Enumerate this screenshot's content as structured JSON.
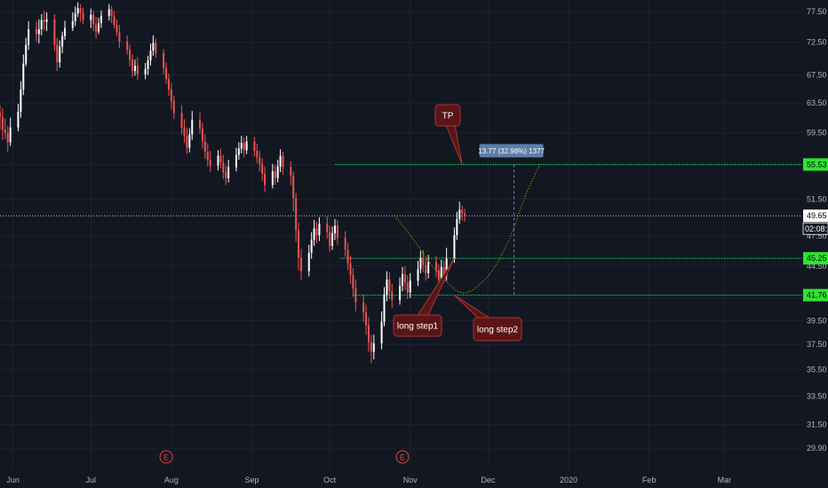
{
  "colors": {
    "background": "#131722",
    "grid": "#1e222d",
    "up": "#ffffff",
    "down": "#ef5350",
    "level_line": "#00c853",
    "level_tag": "#2ee52e",
    "path": "#c8b400",
    "callout_fill": "#5b1516",
    "callout_stroke": "#a63636",
    "measure_fill": "#5b7fa8"
  },
  "chart_data": {
    "type": "candlestick",
    "y_axis": {
      "ticks": [
        "77.50",
        "72.50",
        "67.50",
        "63.50",
        "59.50",
        "55.50",
        "51.50",
        "47.50",
        "44.50",
        "41.50",
        "39.50",
        "37.50",
        "35.50",
        "33.50",
        "31.50",
        "29.90"
      ],
      "tick_values": [
        77.5,
        72.5,
        67.5,
        63.5,
        59.5,
        55.5,
        51.5,
        47.5,
        44.5,
        41.5,
        39.5,
        37.5,
        35.5,
        33.5,
        31.5,
        29.9
      ],
      "scale": "log",
      "range": [
        28.5,
        79.5
      ]
    },
    "x_axis": {
      "ticks": [
        "Jun",
        "Jul",
        "Aug",
        "Sep",
        "Oct",
        "Nov",
        "Dec",
        "2020",
        "Feb",
        "Mar"
      ],
      "tick_dates": [
        "2019-06-01",
        "2019-07-01",
        "2019-08-01",
        "2019-09-01",
        "2019-10-01",
        "2019-11-01",
        "2019-12-01",
        "2020-01-01",
        "2020-02-01",
        "2020-03-01"
      ],
      "range": [
        "2019-05-27",
        "2020-03-31"
      ]
    },
    "current_price": {
      "value": 49.65,
      "label": "49.65",
      "countdown": "02:08:1"
    },
    "levels": [
      {
        "name": "TP",
        "value": 55.53,
        "label": "55.53",
        "from": "2019-10-03"
      },
      {
        "name": "long step1",
        "value": 45.25,
        "label": "45.25",
        "from": "2019-10-05"
      },
      {
        "name": "long step2",
        "value": 41.76,
        "label": "41.76",
        "from": "2019-10-10"
      }
    ],
    "projection_path": [
      [
        "2019-10-26",
        49.65
      ],
      [
        "2019-11-02",
        47.3
      ],
      [
        "2019-11-09",
        44.6
      ],
      [
        "2019-11-16",
        42.7
      ],
      [
        "2019-11-21",
        41.8
      ],
      [
        "2019-11-26",
        42.3
      ],
      [
        "2019-12-03",
        44.0
      ],
      [
        "2019-12-10",
        47.5
      ],
      [
        "2019-12-15",
        51.8
      ],
      [
        "2019-12-21",
        55.53
      ]
    ],
    "measure": {
      "label": "13.77 (32.98%) 1377",
      "date": "2019-12-11",
      "from": 41.76,
      "to": 55.53
    },
    "callouts": [
      {
        "text": "TP",
        "anchor": [
          "2019-11-21",
          55.53
        ]
      },
      {
        "text": "long step1",
        "anchor": [
          "2019-11-18",
          45.25
        ]
      },
      {
        "text": "long step2",
        "anchor": [
          "2019-11-18",
          41.76
        ]
      }
    ],
    "events": [
      {
        "label": "E",
        "date": "2019-07-30"
      },
      {
        "label": "E",
        "date": "2019-10-29"
      }
    ],
    "candles": [
      [
        62.2,
        61.6,
        63.2,
        59.9
      ],
      [
        61.6,
        59.9,
        62.8,
        58.6
      ],
      [
        59.9,
        59.5,
        61.4,
        58.7
      ],
      [
        59.5,
        58.3,
        60.4,
        57.1
      ],
      [
        58.3,
        60.2,
        61.5,
        57.8
      ],
      [
        60.2,
        62.3,
        63.4,
        59.7
      ],
      [
        62.3,
        65.4,
        66.6,
        61.5
      ],
      [
        65.4,
        69.2,
        70.6,
        64.6
      ],
      [
        69.2,
        72.1,
        73.2,
        68.8
      ],
      [
        72.1,
        74.6,
        75.9,
        71.3
      ],
      [
        74.6,
        73.8,
        75.8,
        72.6
      ],
      [
        73.8,
        74.6,
        76.2,
        72.3
      ],
      [
        74.6,
        76.1,
        77.1,
        73.6
      ],
      [
        76.1,
        75.8,
        77.7,
        74.4
      ],
      [
        75.8,
        76.2,
        77.4,
        74.3
      ],
      [
        76.2,
        72.1,
        77.1,
        71.1
      ],
      [
        72.1,
        69.4,
        73.2,
        68.1
      ],
      [
        69.4,
        71.8,
        72.8,
        68.6
      ],
      [
        71.8,
        73.5,
        74.2,
        70.8
      ],
      [
        73.5,
        74.8,
        76.0,
        72.9
      ],
      [
        74.8,
        75.9,
        77.4,
        74.3
      ],
      [
        75.9,
        77.2,
        78.4,
        75.1
      ],
      [
        77.2,
        78.1,
        79.1,
        76.6
      ],
      [
        78.1,
        77.3,
        78.8,
        75.8
      ],
      [
        77.3,
        76.1,
        78.2,
        75.4
      ],
      [
        76.1,
        77.0,
        78.0,
        74.8
      ],
      [
        77.0,
        75.4,
        77.7,
        74.3
      ],
      [
        75.4,
        74.2,
        76.6,
        73.1
      ],
      [
        74.2,
        75.6,
        76.5,
        73.8
      ],
      [
        75.6,
        76.8,
        77.7,
        74.8
      ],
      [
        76.8,
        77.9,
        78.8,
        76.0
      ],
      [
        77.9,
        76.7,
        78.5,
        75.6
      ],
      [
        76.7,
        75.3,
        77.6,
        74.7
      ],
      [
        75.3,
        74.1,
        76.2,
        73.5
      ],
      [
        74.1,
        72.6,
        75.3,
        71.6
      ],
      [
        72.6,
        71.3,
        73.6,
        70.6
      ],
      [
        71.3,
        69.8,
        72.1,
        68.7
      ],
      [
        69.8,
        68.1,
        70.6,
        67.2
      ],
      [
        68.1,
        68.9,
        69.8,
        67.4
      ],
      [
        68.9,
        67.6,
        70.2,
        66.8
      ],
      [
        67.6,
        68.4,
        69.3,
        66.9
      ],
      [
        68.4,
        69.7,
        70.4,
        67.5
      ],
      [
        69.7,
        71.2,
        72.3,
        68.9
      ],
      [
        71.2,
        72.4,
        73.6,
        70.4
      ],
      [
        72.4,
        70.8,
        73.1,
        70.1
      ],
      [
        70.8,
        68.5,
        71.4,
        67.6
      ],
      [
        68.5,
        66.9,
        69.4,
        66.2
      ],
      [
        66.9,
        65.4,
        67.7,
        64.5
      ],
      [
        65.4,
        63.8,
        66.3,
        62.7
      ],
      [
        63.8,
        62.1,
        64.5,
        61.3
      ],
      [
        62.1,
        60.2,
        63.2,
        59.3
      ],
      [
        60.2,
        59.1,
        61.3,
        58.2
      ],
      [
        59.1,
        57.6,
        60.2,
        56.8
      ],
      [
        57.6,
        59.3,
        60.1,
        57.0
      ],
      [
        59.3,
        61.2,
        62.4,
        58.6
      ],
      [
        61.2,
        60.1,
        62.2,
        59.4
      ],
      [
        60.1,
        58.4,
        60.8,
        57.5
      ],
      [
        58.4,
        57.1,
        59.3,
        56.2
      ],
      [
        57.1,
        56.1,
        58.2,
        55.3
      ],
      [
        56.1,
        55.4,
        57.2,
        54.6
      ],
      [
        55.4,
        56.6,
        57.3,
        54.8
      ],
      [
        56.6,
        55.8,
        57.5,
        55.1
      ],
      [
        55.8,
        54.6,
        56.7,
        53.8
      ],
      [
        54.6,
        53.9,
        55.4,
        53.1
      ],
      [
        53.9,
        55.2,
        56.1,
        53.4
      ],
      [
        55.2,
        56.7,
        57.6,
        54.7
      ],
      [
        56.7,
        57.5,
        58.3,
        56.1
      ],
      [
        57.5,
        58.2,
        59.1,
        56.9
      ],
      [
        58.2,
        57.3,
        58.9,
        56.4
      ],
      [
        57.3,
        58.4,
        59.1,
        56.8
      ],
      [
        58.4,
        57.2,
        59.0,
        56.5
      ],
      [
        57.2,
        56.4,
        58.1,
        55.7
      ],
      [
        56.4,
        55.6,
        57.2,
        54.7
      ],
      [
        55.6,
        54.4,
        56.3,
        53.6
      ],
      [
        54.4,
        53.1,
        55.3,
        52.3
      ],
      [
        53.1,
        54.7,
        55.6,
        52.7
      ],
      [
        54.7,
        53.9,
        55.5,
        53.1
      ],
      [
        53.9,
        55.3,
        56.1,
        53.4
      ],
      [
        55.3,
        56.6,
        57.4,
        54.6
      ],
      [
        56.6,
        55.2,
        57.1,
        54.3
      ],
      [
        55.2,
        54.2,
        55.9,
        53.1
      ],
      [
        54.2,
        51.6,
        54.7,
        50.1
      ],
      [
        51.6,
        48.1,
        52.2,
        46.9
      ],
      [
        48.1,
        45.3,
        48.9,
        44.1
      ],
      [
        45.3,
        44.0,
        46.2,
        43.2
      ],
      [
        44.0,
        45.8,
        46.6,
        43.5
      ],
      [
        45.8,
        47.1,
        47.9,
        45.2
      ],
      [
        47.1,
        48.3,
        49.2,
        46.5
      ],
      [
        48.3,
        47.6,
        49.0,
        46.8
      ],
      [
        47.6,
        48.8,
        49.5,
        47.0
      ],
      [
        48.8,
        47.9,
        49.6,
        47.2
      ],
      [
        47.9,
        46.5,
        48.6,
        45.9
      ],
      [
        46.5,
        47.8,
        48.5,
        46.1
      ],
      [
        47.8,
        48.6,
        49.3,
        47.1
      ],
      [
        48.6,
        47.3,
        49.2,
        46.6
      ],
      [
        47.3,
        46.1,
        48.0,
        45.4
      ],
      [
        46.1,
        44.8,
        46.8,
        44.1
      ],
      [
        44.8,
        43.6,
        45.5,
        42.8
      ],
      [
        43.6,
        42.4,
        44.3,
        41.6
      ],
      [
        42.4,
        41.1,
        43.2,
        40.3
      ],
      [
        41.1,
        40.2,
        41.8,
        39.4
      ],
      [
        40.2,
        39.1,
        40.9,
        38.3
      ],
      [
        39.1,
        37.7,
        39.8,
        36.9
      ],
      [
        37.7,
        36.9,
        38.3,
        36.0
      ],
      [
        36.9,
        37.6,
        38.3,
        36.3
      ],
      [
        37.6,
        39.4,
        40.3,
        37.1
      ],
      [
        39.4,
        41.8,
        42.5,
        39.0
      ],
      [
        41.8,
        43.2,
        44.0,
        41.2
      ],
      [
        43.2,
        42.1,
        43.9,
        41.4
      ],
      [
        42.1,
        41.3,
        42.8,
        40.6
      ],
      [
        41.3,
        42.6,
        43.4,
        40.9
      ],
      [
        42.6,
        43.7,
        44.4,
        42.1
      ],
      [
        43.7,
        42.9,
        44.5,
        42.2
      ],
      [
        42.9,
        42.0,
        43.6,
        41.4
      ],
      [
        42.0,
        43.1,
        43.8,
        41.5
      ],
      [
        43.1,
        44.2,
        45.0,
        42.6
      ],
      [
        44.2,
        45.3,
        46.0,
        43.8
      ],
      [
        45.3,
        44.6,
        46.1,
        43.9
      ],
      [
        44.6,
        43.8,
        45.2,
        43.1
      ],
      [
        43.8,
        44.9,
        45.6,
        43.3
      ],
      [
        44.9,
        44.1,
        45.5,
        43.4
      ],
      [
        44.1,
        43.2,
        44.7,
        42.5
      ],
      [
        43.2,
        44.4,
        45.1,
        42.8
      ],
      [
        44.4,
        43.6,
        45.0,
        42.9
      ],
      [
        43.6,
        45.2,
        46.3,
        43.1
      ],
      [
        45.2,
        47.6,
        48.4,
        44.8
      ],
      [
        47.6,
        49.3,
        50.1,
        47.1
      ],
      [
        49.3,
        50.3,
        51.2,
        48.8
      ],
      [
        50.3,
        49.9,
        50.8,
        49.1
      ],
      [
        49.9,
        49.65,
        50.4,
        49.0
      ]
    ]
  }
}
